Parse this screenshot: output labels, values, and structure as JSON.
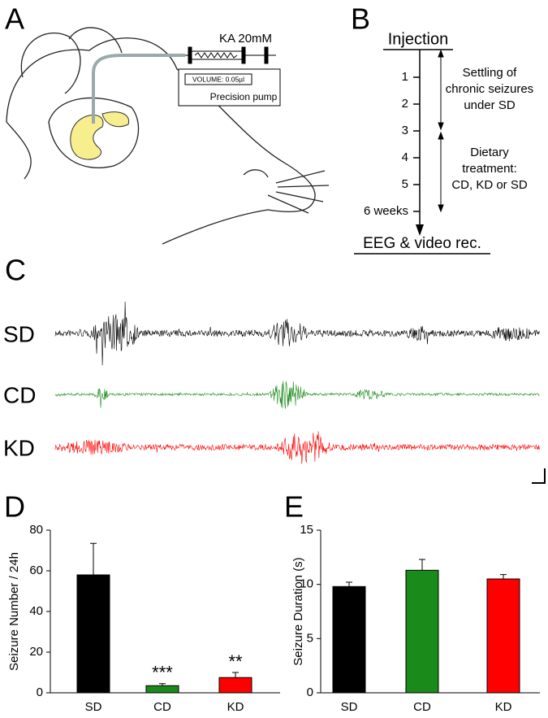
{
  "panel_a": {
    "label": "A",
    "syringe_label": "KA 20mM",
    "volume_label": "VOLUME: 0.05µl",
    "pump_label": "Precision pump"
  },
  "panel_b": {
    "label": "B",
    "top": "Injection",
    "timeline": [
      "1",
      "2",
      "3",
      "4",
      "5",
      "6 weeks"
    ],
    "phase_1": [
      "Settling of",
      "chronic seizures",
      "under SD"
    ],
    "phase_2": [
      "Dietary",
      "treatment:",
      "CD, KD or SD"
    ],
    "bottom": "EEG & video rec."
  },
  "panel_c": {
    "label": "C",
    "traces": [
      {
        "name": "SD",
        "color": "#000000"
      },
      {
        "name": "CD",
        "color": "#1a8a1a"
      },
      {
        "name": "KD",
        "color": "#ff0000"
      }
    ]
  },
  "chart_data": [
    {
      "type": "bar",
      "label": "D",
      "y_label": "Seizure Number / 24h",
      "categories": [
        "SD",
        "CD",
        "KD"
      ],
      "values": [
        58,
        3.5,
        7.5
      ],
      "errors": [
        15.5,
        1,
        2.5
      ],
      "significance": [
        null,
        "***",
        "**"
      ],
      "colors": [
        "#000000",
        "#1a8a1a",
        "#ff0000"
      ],
      "ylim": [
        0,
        80
      ],
      "yticks": [
        0,
        20,
        40,
        60,
        80
      ]
    },
    {
      "type": "bar",
      "label": "E",
      "y_label": "Seizure Duration (s)",
      "categories": [
        "SD",
        "CD",
        "KD"
      ],
      "values": [
        9.8,
        11.3,
        10.5
      ],
      "errors": [
        0.4,
        1.0,
        0.4
      ],
      "colors": [
        "#000000",
        "#1a8a1a",
        "#ff0000"
      ],
      "ylim": [
        0,
        15
      ],
      "yticks": [
        0,
        5,
        10,
        15
      ]
    }
  ]
}
